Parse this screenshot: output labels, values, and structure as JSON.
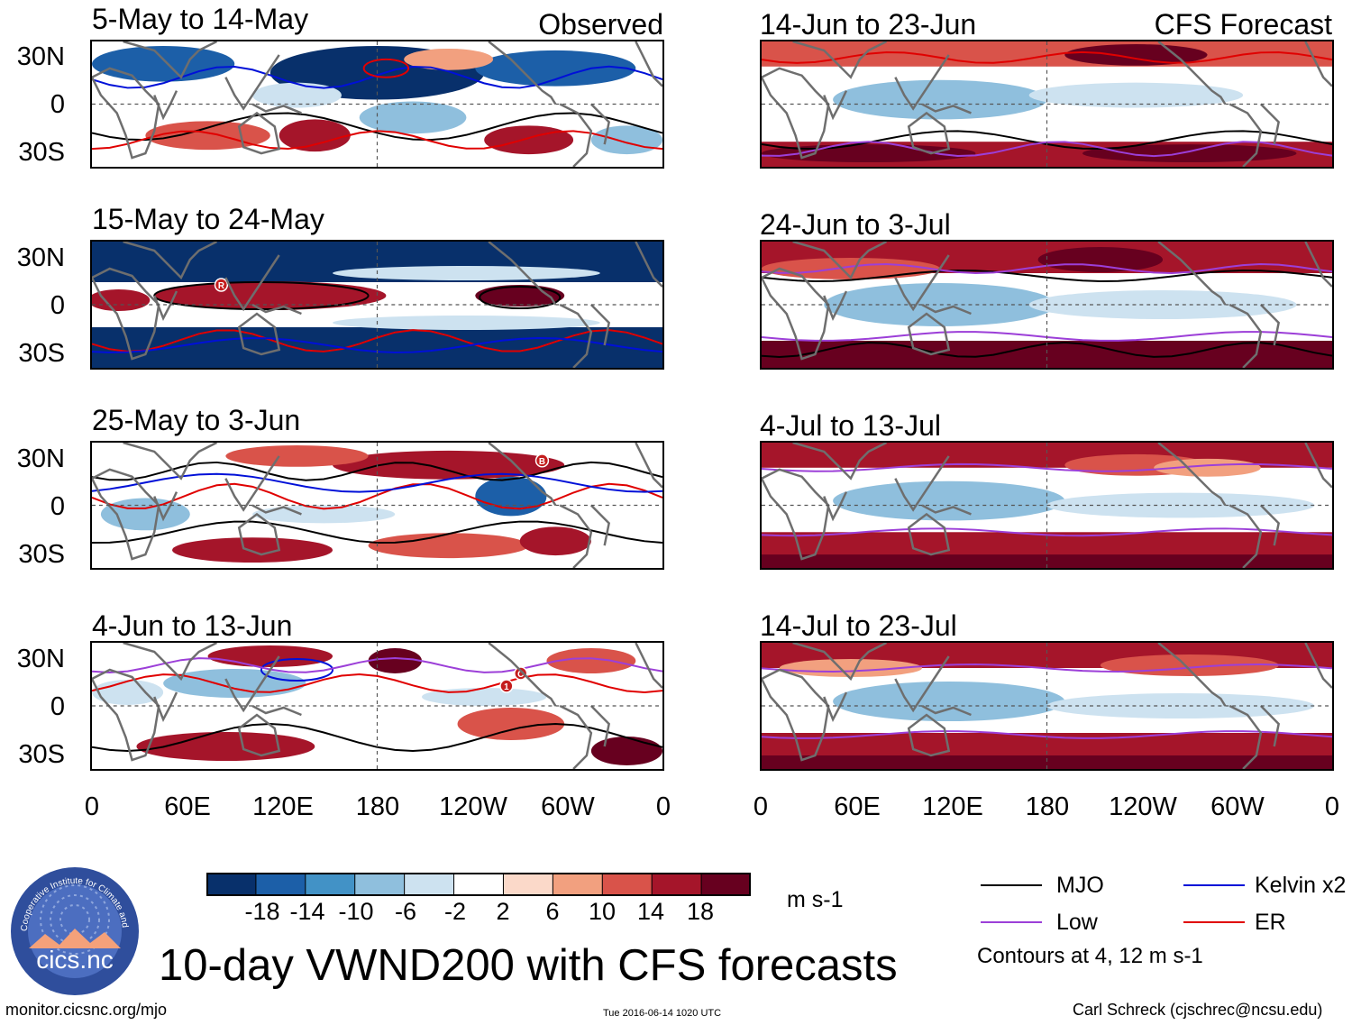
{
  "colors": {
    "scale": [
      "#08306b",
      "#1c5fa8",
      "#4292c6",
      "#8fbfdd",
      "#cde2f0",
      "#ffffff",
      "#fbd9c9",
      "#f2a07f",
      "#d9534a",
      "#a5152a",
      "#67001f"
    ],
    "mjo": "#000000",
    "kelvin": "#0010d8",
    "low": "#9c3fd8",
    "er": "#e00000",
    "land": "#6e6e6e"
  },
  "observed_header": "Observed",
  "forecast_header": "CFS Forecast",
  "observed_panels": [
    {
      "title": "5-May to 14-May",
      "pattern": "obs1"
    },
    {
      "title": "15-May to 24-May",
      "pattern": "obs2"
    },
    {
      "title": "25-May to 3-Jun",
      "pattern": "obs3"
    },
    {
      "title": "4-Jun to 13-Jun",
      "pattern": "obs4"
    }
  ],
  "forecast_panels": [
    {
      "title": "14-Jun to 23-Jun",
      "pattern": "fc1"
    },
    {
      "title": "24-Jun to 3-Jul",
      "pattern": "fc2"
    },
    {
      "title": "4-Jul to 13-Jul",
      "pattern": "fc3"
    },
    {
      "title": "14-Jul to 23-Jul",
      "pattern": "fc4"
    }
  ],
  "lat_labels": [
    "30N",
    "0",
    "30S"
  ],
  "lon_labels": [
    "0",
    "60E",
    "120E",
    "180",
    "120W",
    "60W",
    "0"
  ],
  "markers": [
    {
      "panel": "obs2",
      "text": "R"
    },
    {
      "panel": "obs3",
      "text": "B"
    },
    {
      "panel": "obs4",
      "text": "1"
    },
    {
      "panel": "obs4",
      "text": "C"
    }
  ],
  "colorbar": {
    "ticks": [
      "-18",
      "-14",
      "-10",
      "-6",
      "-2",
      "2",
      "6",
      "10",
      "14",
      "18"
    ],
    "units": "m s-1"
  },
  "legend": {
    "items": [
      {
        "label": "MJO",
        "color_key": "mjo"
      },
      {
        "label": "Kelvin x2",
        "color_key": "kelvin"
      },
      {
        "label": "Low",
        "color_key": "low"
      },
      {
        "label": "ER",
        "color_key": "er"
      }
    ],
    "contours_note": "Contours at 4, 12 m s-1"
  },
  "title": "10-day VWND200 with CFS forecasts",
  "logo_text": "cics.nc",
  "logo_ring_text": "Cooperative Institute for Climate and Satellites",
  "footer": {
    "url": "monitor.cicsnc.org/mjo",
    "timestamp": "Tue 2016-06-14 1020 UTC",
    "credit": "Carl Schreck (cjschrec@ncsu.edu)"
  }
}
